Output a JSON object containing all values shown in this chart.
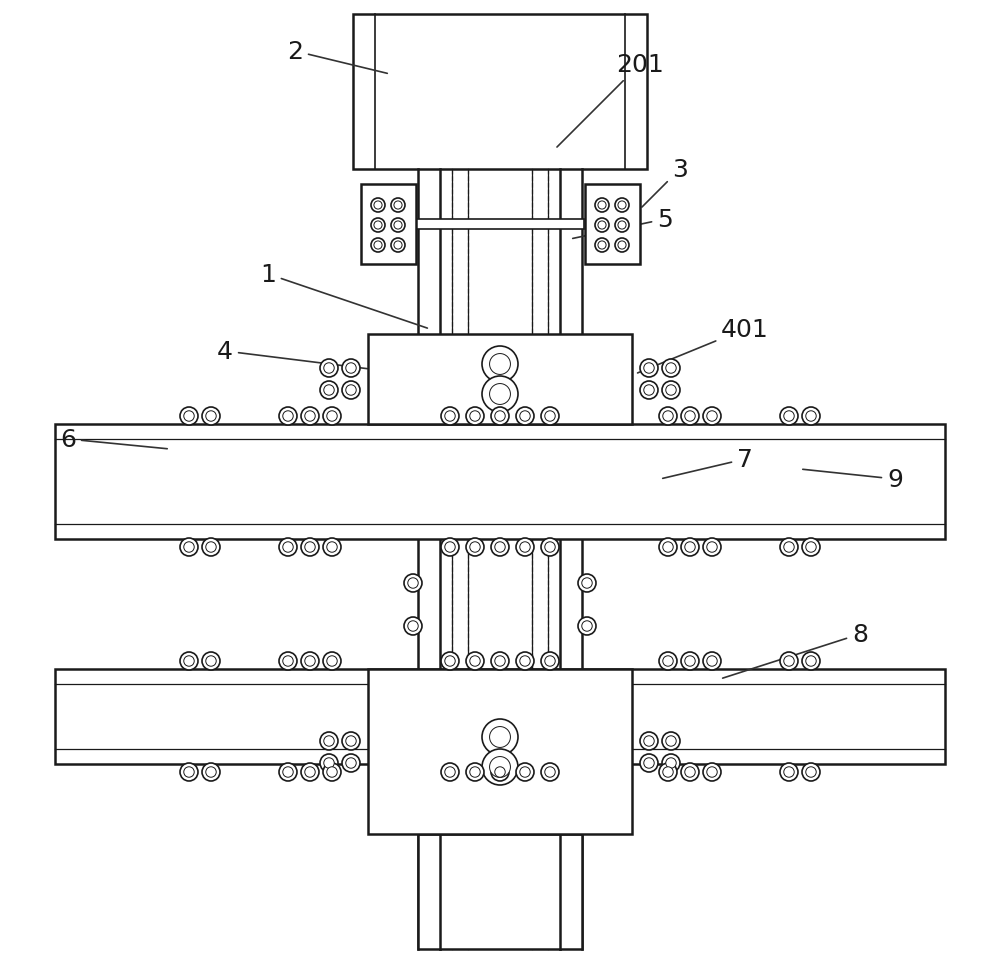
{
  "bg_color": "#ffffff",
  "line_color": "#1a1a1a",
  "dashed_color": "#555555",
  "label_color": "#1a1a1a",
  "label_fontsize": 18,
  "leader_color": "#333333"
}
